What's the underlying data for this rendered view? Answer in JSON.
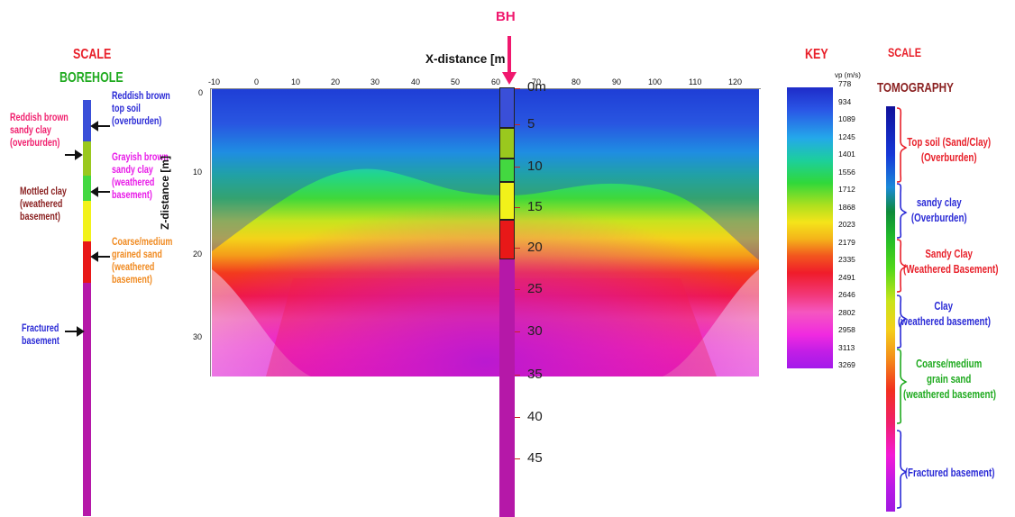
{
  "colors": {
    "red_text": "#e8202a",
    "green_text": "#1faa1f",
    "blue_text": "#2a2ad6",
    "magenta_text": "#e818e8",
    "pink_text": "#f0206e",
    "brown_text": "#8a2020",
    "orange_text": "#f08a20",
    "bh_pink": "#f0186e"
  },
  "left": {
    "scale_title": "SCALE",
    "borehole_title": "BOREHOLE",
    "labels_left": [
      {
        "text": "Reddish brown\nsandy clay\n(overburden)"
      },
      {
        "text": "Mottled clay\n(weathered\nbasement)"
      },
      {
        "text": "Fractured\nbasement"
      }
    ],
    "labels_right": [
      {
        "text": "Reddish brown\ntop soil\n(overburden)"
      },
      {
        "text": "Grayish brown\nsandy clay\n(weathered\nbasement)"
      },
      {
        "text": "Coarse/medium\ngrained sand\n(weathered\nbasement)"
      }
    ],
    "segments": [
      {
        "color": "#3a4fd8",
        "from": 0,
        "to": 5
      },
      {
        "color": "#9ac81e",
        "from": 5,
        "to": 9
      },
      {
        "color": "#43d840",
        "from": 9,
        "to": 12
      },
      {
        "color": "#f2f21a",
        "from": 12,
        "to": 17
      },
      {
        "color": "#e81818",
        "from": 17,
        "to": 22
      },
      {
        "color": "#b518a8",
        "from": 22,
        "to": 50
      }
    ]
  },
  "plot": {
    "x_title": "X-distance [m",
    "y_title": "Z-distance [m]",
    "x_ticks": [
      "-10",
      "0",
      "10",
      "20",
      "30",
      "40",
      "50",
      "60",
      "70",
      "80",
      "90",
      "100",
      "110",
      "120"
    ],
    "y_ticks": [
      "0",
      "10",
      "20",
      "30"
    ],
    "bh_label": "BH"
  },
  "bh_column": {
    "depths": [
      "0m",
      "5",
      "10",
      "15",
      "20",
      "25",
      "30",
      "35",
      "40",
      "45"
    ],
    "segments": [
      {
        "color": "#3a4fd8"
      },
      {
        "color": "#9ac81e"
      },
      {
        "color": "#43d840"
      },
      {
        "color": "#f2f21a"
      },
      {
        "color": "#e81818"
      },
      {
        "color": "#b518a8"
      }
    ]
  },
  "key": {
    "title": "KEY",
    "unit": "vp (m/s)",
    "values": [
      "778",
      "934",
      "1089",
      "1245",
      "1401",
      "1556",
      "1712",
      "1868",
      "2023",
      "2179",
      "2335",
      "2491",
      "2646",
      "2802",
      "2958",
      "3113",
      "3269"
    ]
  },
  "right": {
    "scale_title": "SCALE",
    "tomo_title": "TOMOGRAPHY",
    "labels": [
      {
        "text": "Top soil (Sand/Clay)\n(Overburden)",
        "color": "#e8202a"
      },
      {
        "text": "sandy clay\n(Overburden)",
        "color": "#2a2ad6"
      },
      {
        "text": "Sandy Clay\n(Weathered Basement)",
        "color": "#e8202a"
      },
      {
        "text": "Clay\n(weathered basement)",
        "color": "#2a2ad6"
      },
      {
        "text": "Coarse/medium\ngrain sand\n(weathered basement)",
        "color": "#1faa1f"
      },
      {
        "text": "(Fractured basement)",
        "color": "#2a2ad6"
      }
    ]
  }
}
